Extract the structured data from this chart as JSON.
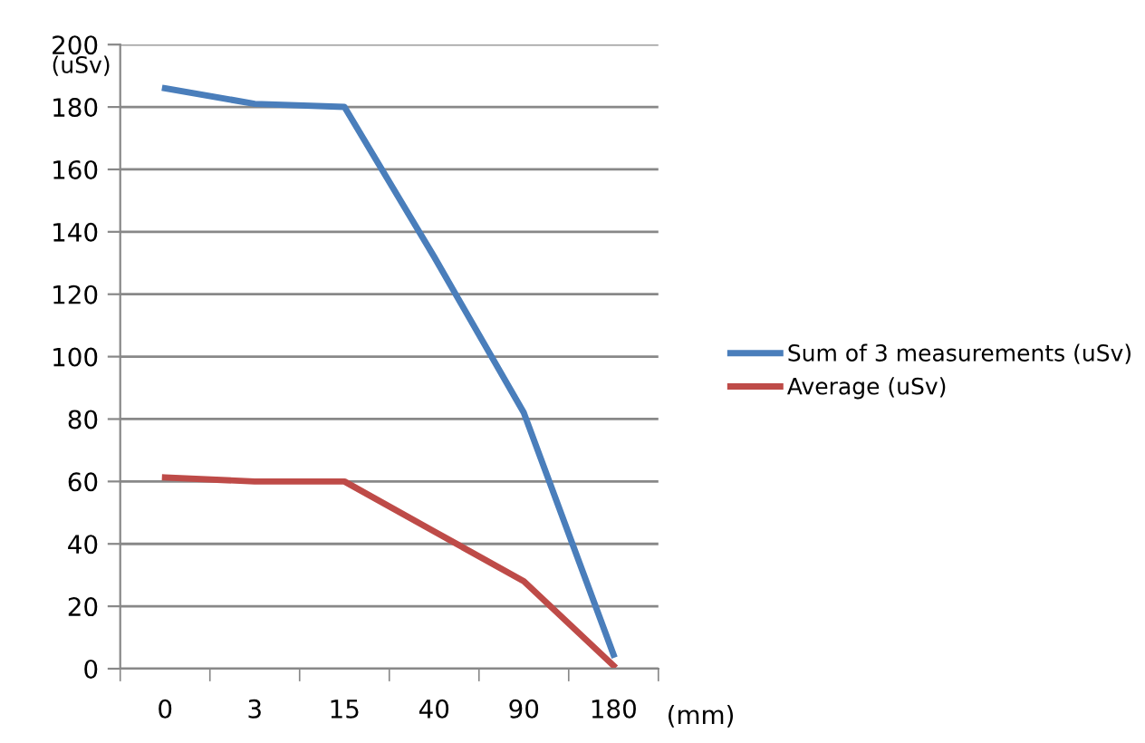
{
  "chart_data": {
    "type": "line",
    "ylabel": "(uSv)",
    "xlabel": "(mm)",
    "categories": [
      "0",
      "3",
      "15",
      "40",
      "90",
      "180"
    ],
    "series": [
      {
        "name": "Sum of 3 measurements (uSv)",
        "color": "#4a7ebb",
        "values": [
          186,
          181,
          180,
          132,
          82,
          4.5
        ]
      },
      {
        "name": "Average (uSv)",
        "color": "#be4b48",
        "values": [
          61.3,
          60,
          60,
          44,
          28,
          1
        ]
      }
    ],
    "ylim": [
      0,
      200
    ],
    "yticks": [
      0,
      20,
      40,
      60,
      80,
      100,
      120,
      140,
      160,
      180,
      200
    ],
    "grid": "y",
    "legend": "right",
    "marker": "none",
    "line_style": "solid"
  }
}
